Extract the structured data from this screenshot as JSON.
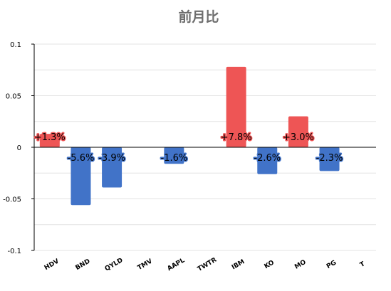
{
  "chart_data": {
    "type": "bar",
    "title": "前月比",
    "xlabel": "",
    "ylabel": "",
    "categories": [
      "HDV",
      "BND",
      "QYLD",
      "TMV",
      "AAPL",
      "TWTR",
      "IBM",
      "KO",
      "MO",
      "PG",
      "T"
    ],
    "values": [
      0.013,
      -0.056,
      -0.039,
      null,
      -0.016,
      null,
      0.078,
      -0.026,
      0.03,
      -0.023,
      null
    ],
    "data_labels": [
      "+1.3%",
      "-5.6%",
      "-3.9%",
      "",
      "-1.6%",
      "",
      "+7.8%",
      "-2.6%",
      "+3.0%",
      "-2.3%",
      ""
    ],
    "ylim": [
      -0.1,
      0.1
    ],
    "yticks": [
      -0.1,
      -0.05,
      0,
      0.05,
      0.1
    ],
    "ytick_labels": [
      "-0.1",
      "-0.05",
      "0",
      "0.05",
      "0.1"
    ],
    "grid": true,
    "legend": "none",
    "colors": {
      "positive": "#ee5555",
      "negative": "#4173c8",
      "grid": "#e3e3e3",
      "axis": "#000000",
      "title": "#6e6e6e"
    }
  }
}
